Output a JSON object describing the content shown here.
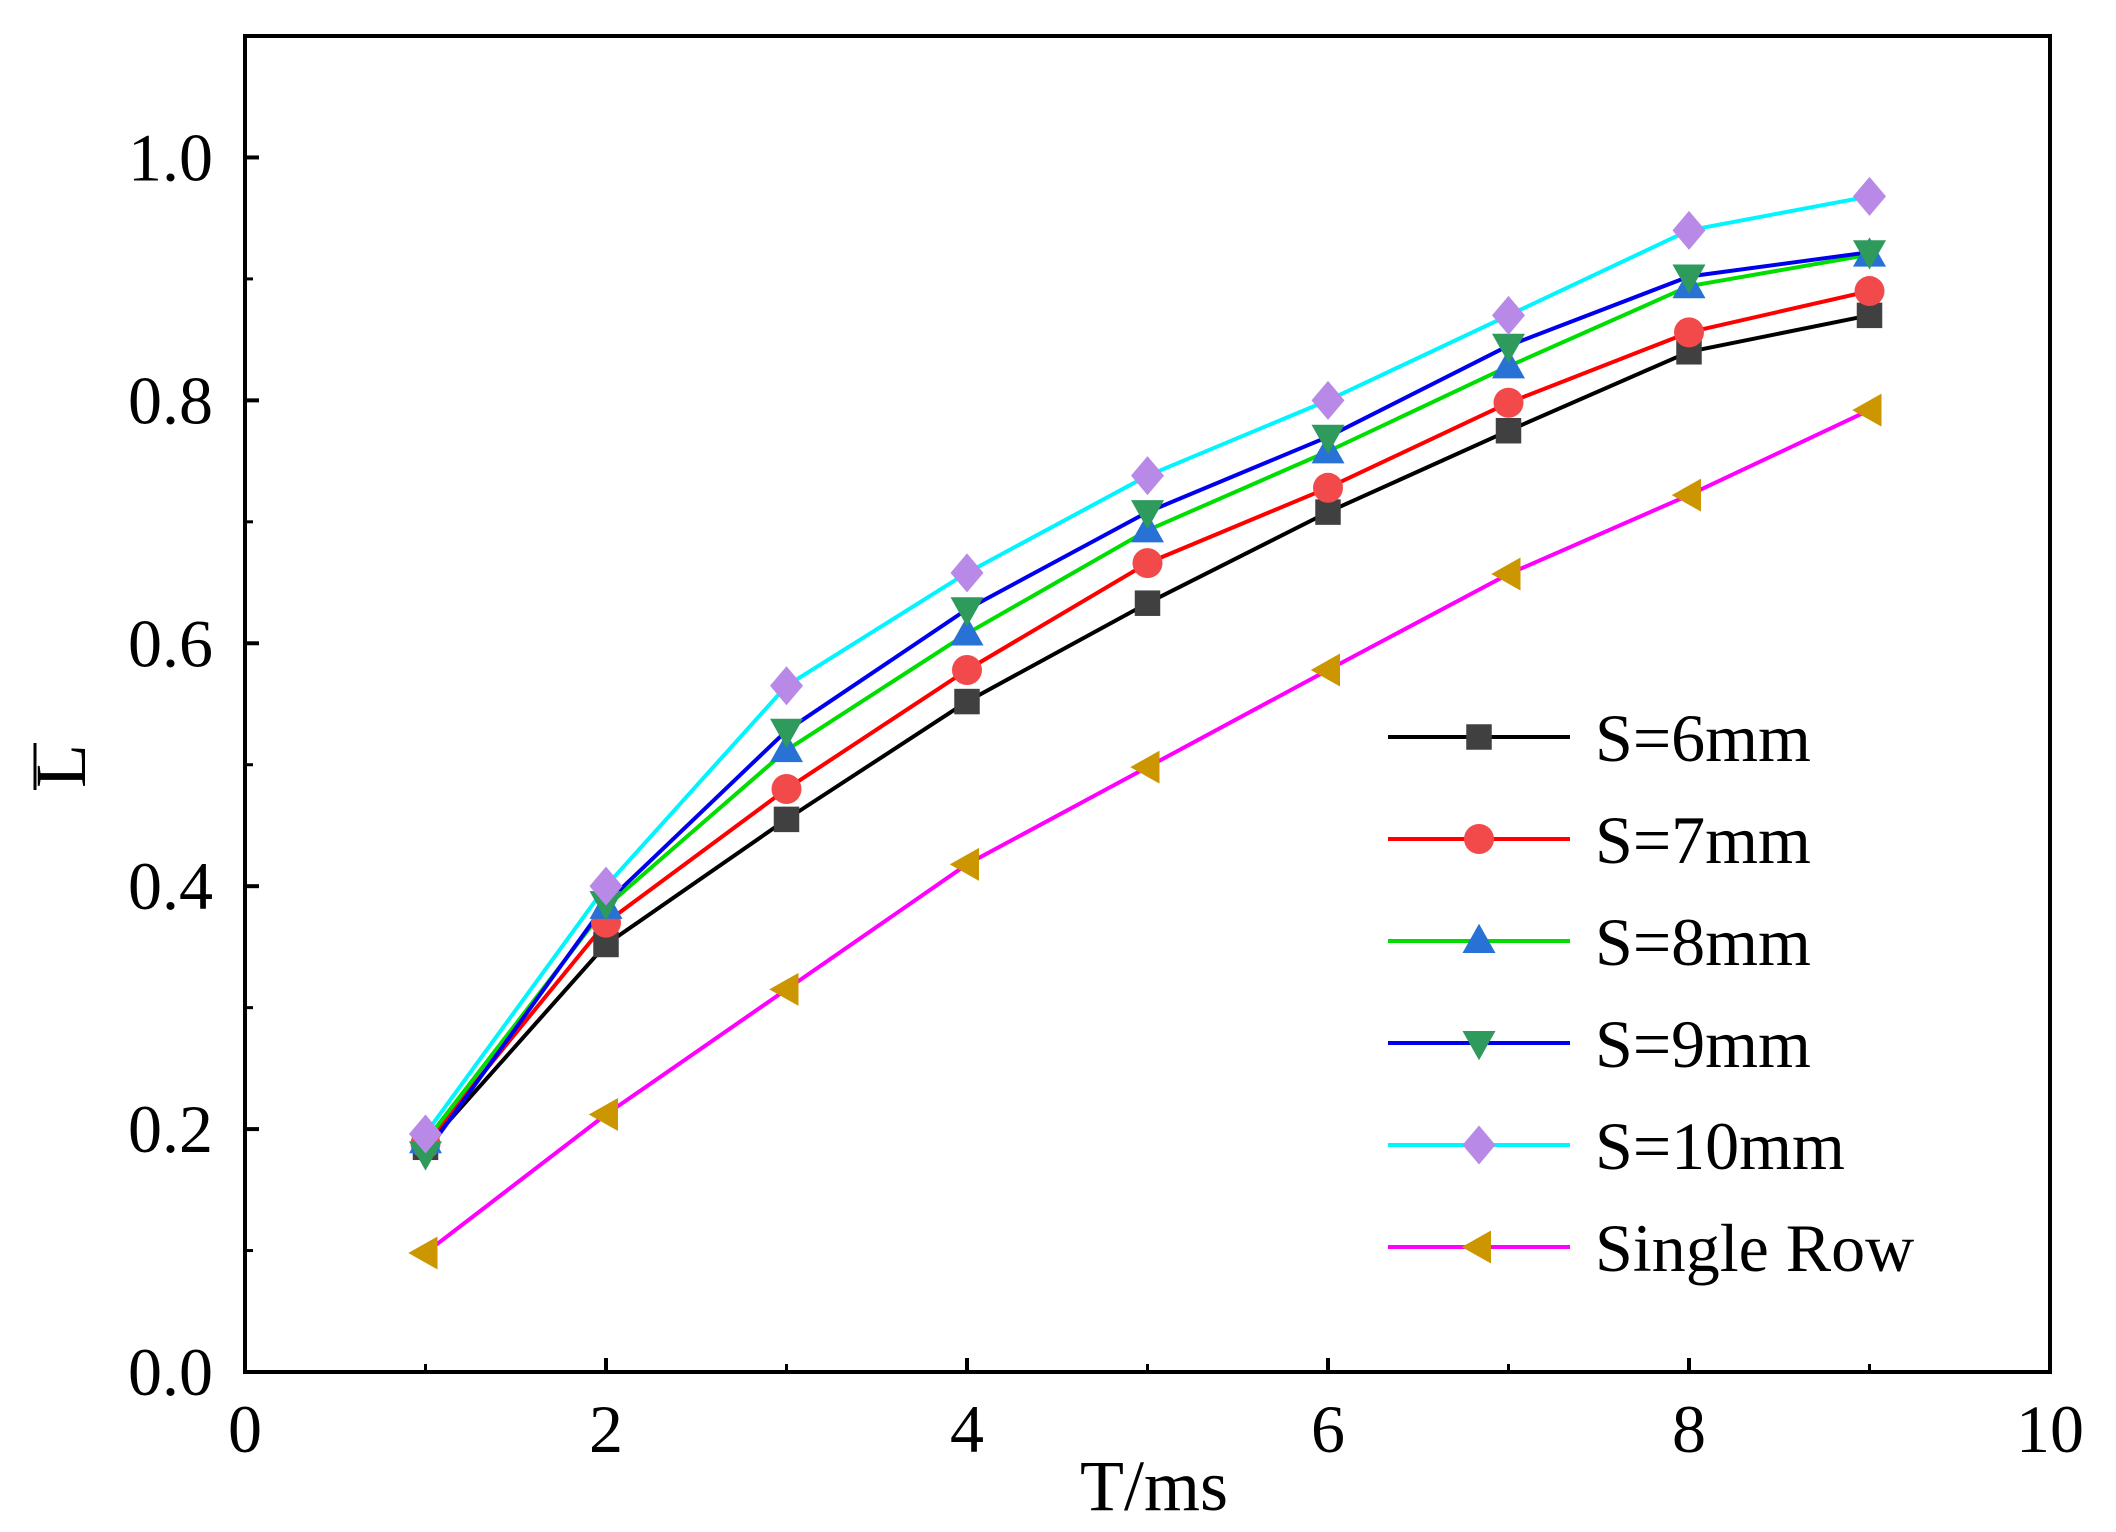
{
  "chart_data": {
    "type": "line",
    "title": "",
    "xlabel": "T/ms",
    "ylabel": "L",
    "ylabel_overline": true,
    "xlim": [
      0,
      10
    ],
    "ylim": [
      0,
      1.1
    ],
    "xticks": [
      0,
      2,
      4,
      6,
      8,
      10
    ],
    "xtick_labels": [
      "0",
      "2",
      "4",
      "6",
      "8",
      "10"
    ],
    "yticks": [
      0.0,
      0.2,
      0.4,
      0.6,
      0.8,
      1.0
    ],
    "ytick_labels": [
      "0.0",
      "0.2",
      "0.4",
      "0.6",
      "0.8",
      "1.0"
    ],
    "grid": false,
    "legend_position": "bottom-right",
    "x": [
      1,
      2,
      3,
      4,
      5,
      6,
      7,
      8,
      9
    ],
    "series": [
      {
        "name": "S=6mm",
        "line_color": "#000000",
        "marker": "square",
        "marker_color": "#404040",
        "values": [
          0.185,
          0.352,
          0.455,
          0.552,
          0.633,
          0.708,
          0.775,
          0.84,
          0.87
        ]
      },
      {
        "name": "S=7mm",
        "line_color": "#ff0000",
        "marker": "circle",
        "marker_color": "#f24a4a",
        "values": [
          0.188,
          0.37,
          0.48,
          0.578,
          0.666,
          0.728,
          0.798,
          0.856,
          0.89
        ]
      },
      {
        "name": "S=8mm",
        "line_color": "#00dd00",
        "marker": "triangle-up",
        "marker_color": "#2872d6",
        "values": [
          0.19,
          0.383,
          0.512,
          0.608,
          0.693,
          0.758,
          0.828,
          0.894,
          0.92
        ]
      },
      {
        "name": "S=9mm",
        "line_color": "#0000ee",
        "marker": "triangle-down",
        "marker_color": "#2e9a5c",
        "values": [
          0.18,
          0.386,
          0.528,
          0.628,
          0.708,
          0.77,
          0.845,
          0.902,
          0.922
        ]
      },
      {
        "name": "S=10mm",
        "line_color": "#00f5ff",
        "marker": "diamond",
        "marker_color": "#b889e6",
        "values": [
          0.196,
          0.4,
          0.565,
          0.658,
          0.738,
          0.8,
          0.87,
          0.94,
          0.968
        ]
      },
      {
        "name": "Single Row",
        "line_color": "#ff00ff",
        "marker": "triangle-left",
        "marker_color": "#cc9600",
        "values": [
          0.098,
          0.212,
          0.315,
          0.418,
          0.498,
          0.578,
          0.657,
          0.722,
          0.792
        ]
      }
    ]
  }
}
